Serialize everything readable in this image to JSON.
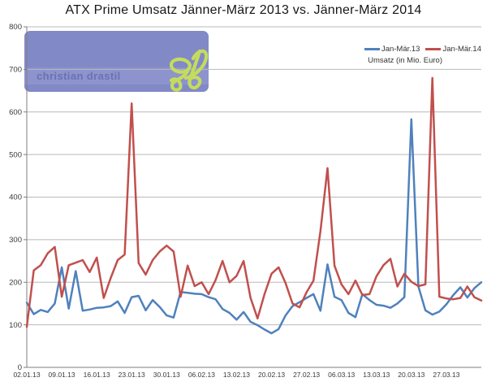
{
  "watermark": {
    "name": "christian drastil",
    "logo_text": "cd"
  },
  "chart_data": {
    "type": "line",
    "title": "ATX Prime Umsatz Jänner-März 2013 vs. Jänner-März 2014",
    "note": "Umsatz (in Mio. Euro)",
    "grid": true,
    "legend_position": "top-right",
    "ylim": [
      0,
      800
    ],
    "y_ticks": [
      0,
      100,
      200,
      300,
      400,
      500,
      600,
      700,
      800
    ],
    "x_labels": [
      "02.01.13",
      "09.01.13",
      "16.01.13",
      "23.01.13",
      "30.01.13",
      "06.02.13",
      "13.02.13",
      "20.02.13",
      "27.02.13",
      "06.03.13",
      "13.03.13",
      "20.03.13",
      "27.03.13"
    ],
    "x_label_every": 5,
    "series": [
      {
        "name": "Jan-Mär.13",
        "color": "#4F81BD",
        "values": [
          152,
          125,
          135,
          130,
          150,
          235,
          138,
          226,
          133,
          136,
          140,
          141,
          144,
          155,
          128,
          165,
          168,
          134,
          158,
          142,
          122,
          117,
          177,
          175,
          173,
          172,
          165,
          160,
          137,
          128,
          112,
          130,
          107,
          99,
          89,
          80,
          90,
          122,
          144,
          153,
          163,
          172,
          133,
          242,
          166,
          158,
          128,
          118,
          172,
          158,
          147,
          145,
          140,
          150,
          165,
          583,
          190,
          134,
          124,
          131,
          148,
          170,
          188,
          164,
          186,
          200
        ]
      },
      {
        "name": "Jan-Mär.14",
        "color": "#C0504D",
        "values": [
          95,
          228,
          240,
          268,
          283,
          166,
          240,
          246,
          252,
          224,
          258,
          163,
          210,
          252,
          265,
          620,
          245,
          218,
          252,
          272,
          286,
          272,
          166,
          239,
          191,
          200,
          172,
          205,
          250,
          200,
          215,
          250,
          163,
          115,
          172,
          220,
          235,
          198,
          150,
          141,
          176,
          204,
          320,
          468,
          239,
          195,
          172,
          204,
          170,
          172,
          214,
          240,
          255,
          190,
          220,
          201,
          191,
          195,
          680,
          166,
          162,
          160,
          163,
          190,
          165,
          157
        ]
      }
    ],
    "colors": {
      "gridline": "#B9B9B9",
      "axis": "#7F7F7F",
      "tick_text": "#3A3A3A",
      "watermark_bg": "#8289C7",
      "watermark_text": "#6A72B4",
      "logo_green": "#C4DC5C"
    }
  }
}
